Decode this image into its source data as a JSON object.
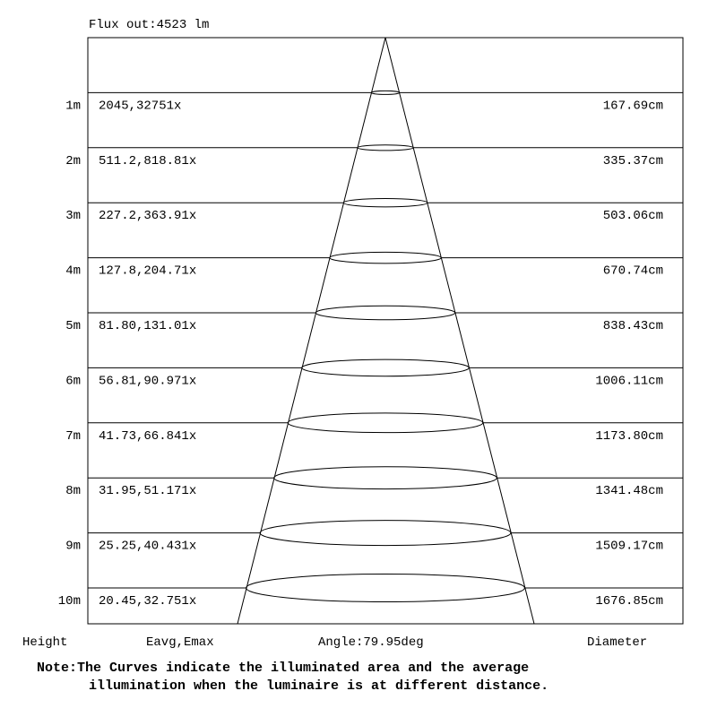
{
  "flux_label": "Flux out:4523 lm",
  "rows": [
    {
      "height": "1m",
      "illuminance": "2045,32751x",
      "diameter": "167.69cm"
    },
    {
      "height": "2m",
      "illuminance": "511.2,818.81x",
      "diameter": "335.37cm"
    },
    {
      "height": "3m",
      "illuminance": "227.2,363.91x",
      "diameter": "503.06cm"
    },
    {
      "height": "4m",
      "illuminance": "127.8,204.71x",
      "diameter": "670.74cm"
    },
    {
      "height": "5m",
      "illuminance": "81.80,131.01x",
      "diameter": "838.43cm"
    },
    {
      "height": "6m",
      "illuminance": "56.81,90.971x",
      "diameter": "1006.11cm"
    },
    {
      "height": "7m",
      "illuminance": "41.73,66.841x",
      "diameter": "1173.80cm"
    },
    {
      "height": "8m",
      "illuminance": "31.95,51.171x",
      "diameter": "1341.48cm"
    },
    {
      "height": "9m",
      "illuminance": "25.25,40.431x",
      "diameter": "1509.17cm"
    },
    {
      "height": "10m",
      "illuminance": "20.45,32.751x",
      "diameter": "1676.85cm"
    }
  ],
  "footer": {
    "height_label": "Height",
    "illuminance_label": "Eavg,Emax",
    "angle_label": "Angle:79.95deg",
    "diameter_label": "Diameter"
  },
  "note": {
    "line1": "Note:The Curves indicate the illuminated area and the average",
    "line2": "illumination when the luminaire is at different distance."
  }
}
